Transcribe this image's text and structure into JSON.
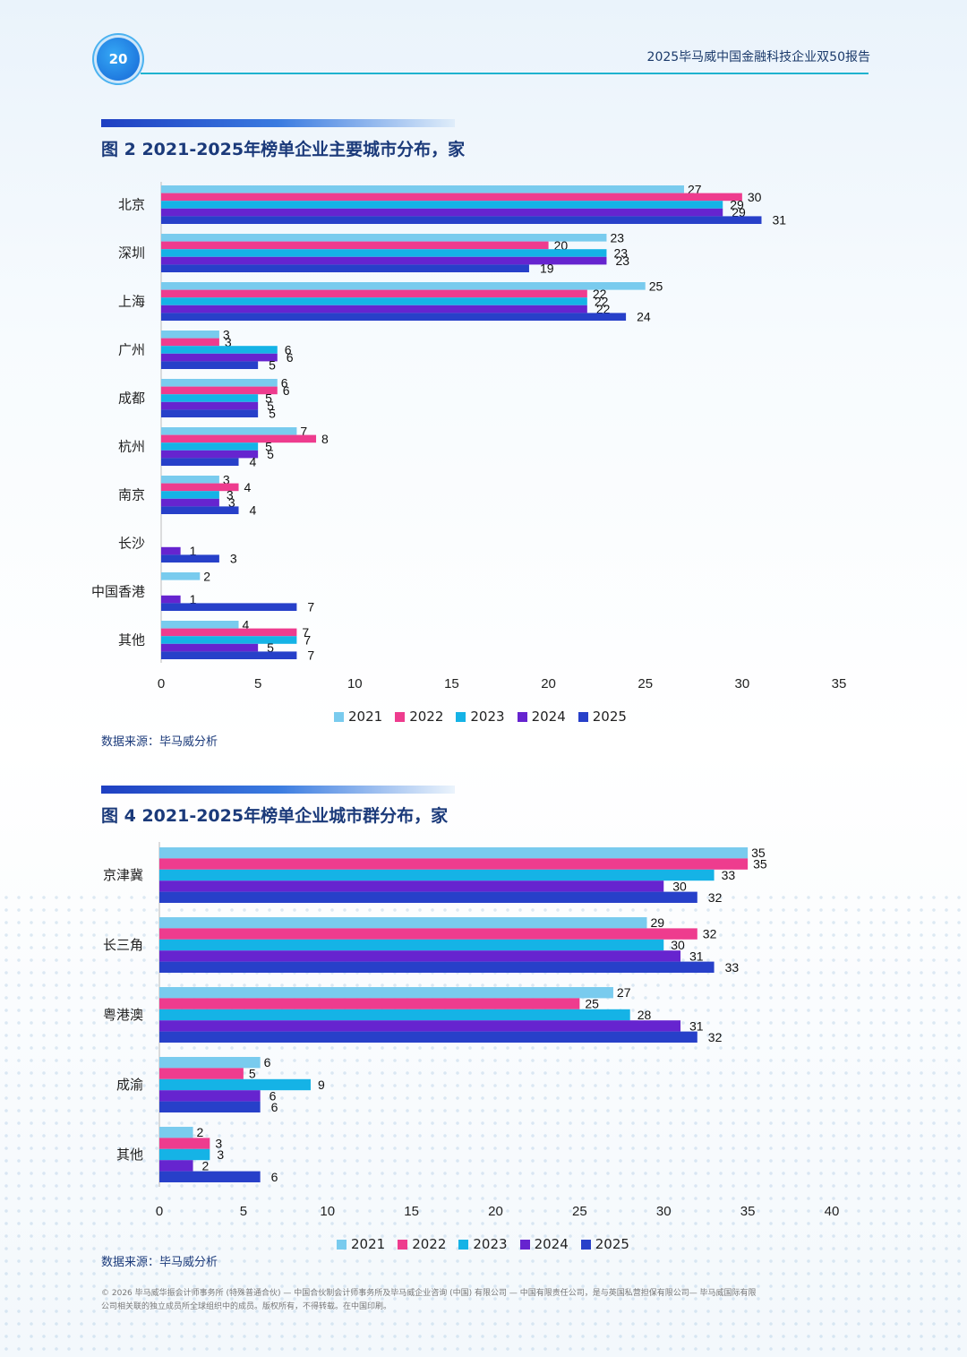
{
  "header": {
    "page_number": "20",
    "report_title": "2025毕马威中国金融科技企业双50报告"
  },
  "colors": {
    "2021": "#79cbee",
    "2022": "#ee3c8e",
    "2023": "#15b3e6",
    "2024": "#6624cf",
    "2025": "#2740c9"
  },
  "chart_data": [
    {
      "type": "bar",
      "orientation": "horizontal",
      "title": "图 2 2021-2025年榜单企业主要城市分布，家",
      "source": "数据来源：毕马威分析",
      "categories": [
        "北京",
        "深圳",
        "上海",
        "广州",
        "成都",
        "杭州",
        "南京",
        "长沙",
        "中国香港",
        "其他"
      ],
      "xlim": [
        0,
        35
      ],
      "xticks": [
        0,
        5,
        10,
        15,
        20,
        25,
        30,
        35
      ],
      "series": [
        {
          "name": "2021",
          "values": [
            27,
            23,
            25,
            3,
            6,
            7,
            3,
            null,
            2,
            4
          ]
        },
        {
          "name": "2022",
          "values": [
            30,
            20,
            22,
            3,
            6,
            8,
            4,
            null,
            null,
            7
          ]
        },
        {
          "name": "2023",
          "values": [
            29,
            23,
            22,
            6,
            5,
            5,
            3,
            null,
            null,
            7
          ]
        },
        {
          "name": "2024",
          "values": [
            29,
            23,
            22,
            6,
            5,
            5,
            3,
            1,
            1,
            5
          ]
        },
        {
          "name": "2025",
          "values": [
            31,
            19,
            24,
            5,
            5,
            4,
            4,
            3,
            7,
            7
          ]
        }
      ]
    },
    {
      "type": "bar",
      "orientation": "horizontal",
      "title": "图 4 2021-2025年榜单企业城市群分布，家",
      "source": "数据来源：毕马威分析",
      "categories": [
        "京津冀",
        "长三角",
        "粤港澳",
        "成渝",
        "其他"
      ],
      "xlim": [
        0,
        40
      ],
      "xticks": [
        0,
        5,
        10,
        15,
        20,
        25,
        30,
        35,
        40
      ],
      "series": [
        {
          "name": "2021",
          "values": [
            35,
            29,
            27,
            6,
            2
          ]
        },
        {
          "name": "2022",
          "values": [
            35,
            32,
            25,
            5,
            3
          ]
        },
        {
          "name": "2023",
          "values": [
            33,
            30,
            28,
            9,
            3
          ]
        },
        {
          "name": "2024",
          "values": [
            30,
            31,
            31,
            6,
            2
          ]
        },
        {
          "name": "2025",
          "values": [
            32,
            33,
            32,
            6,
            6
          ]
        }
      ]
    }
  ],
  "footer": {
    "line1": "© 2026 毕马威华振会计师事务所 (特殊普通合伙) — 中国合伙制会计师事务所及毕马威企业咨询 (中国) 有限公司 — 中国有限责任公司，是与英国私营担保有限公司— 毕马威国际有限",
    "line2": "公司相关联的独立成员所全球组织中的成员。版权所有，不得转载。在中国印刷。"
  }
}
